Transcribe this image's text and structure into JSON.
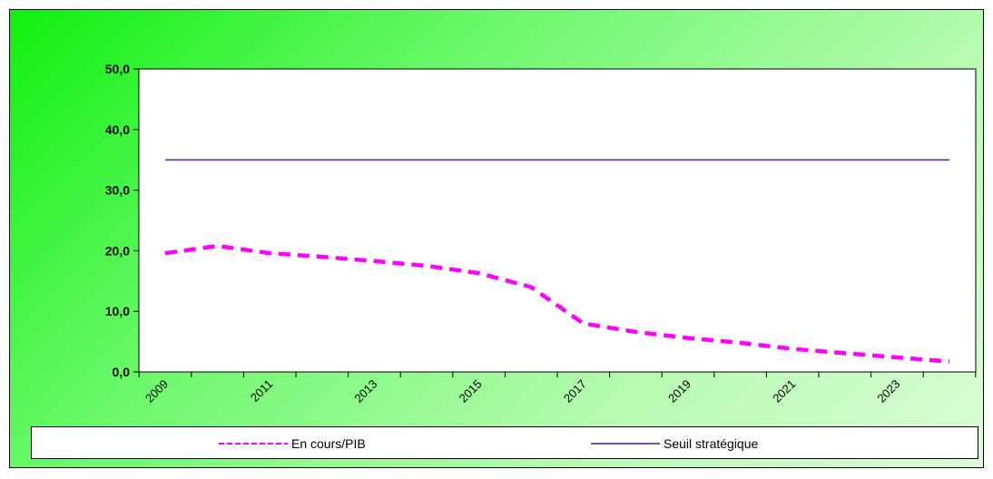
{
  "chart_data": {
    "type": "line",
    "title": "",
    "xlabel": "",
    "ylabel": "",
    "x": [
      2009,
      2010,
      2011,
      2012,
      2013,
      2014,
      2015,
      2016,
      2017,
      2018,
      2019,
      2020,
      2021,
      2022,
      2023,
      2024
    ],
    "x_tick_labels": [
      "2009",
      "2011",
      "2013",
      "2015",
      "2017",
      "2019",
      "2021",
      "2023"
    ],
    "ylim": [
      0,
      50
    ],
    "y_ticks": [
      "0,0",
      "10,0",
      "20,0",
      "30,0",
      "40,0",
      "50,0"
    ],
    "grid": false,
    "legend_position": "bottom",
    "series": [
      {
        "name": "En cours/PIB",
        "style": "dashed",
        "color": "#ff00ff",
        "values": [
          19.6,
          20.8,
          19.6,
          19.0,
          18.3,
          17.5,
          16.3,
          14.0,
          8.0,
          6.6,
          5.6,
          4.8,
          3.8,
          3.1,
          2.4,
          1.7
        ]
      },
      {
        "name": "Seuil stratégique",
        "style": "solid",
        "color": "#7b4fa8",
        "values": [
          35,
          35,
          35,
          35,
          35,
          35,
          35,
          35,
          35,
          35,
          35,
          35,
          35,
          35,
          35,
          35
        ]
      }
    ]
  }
}
